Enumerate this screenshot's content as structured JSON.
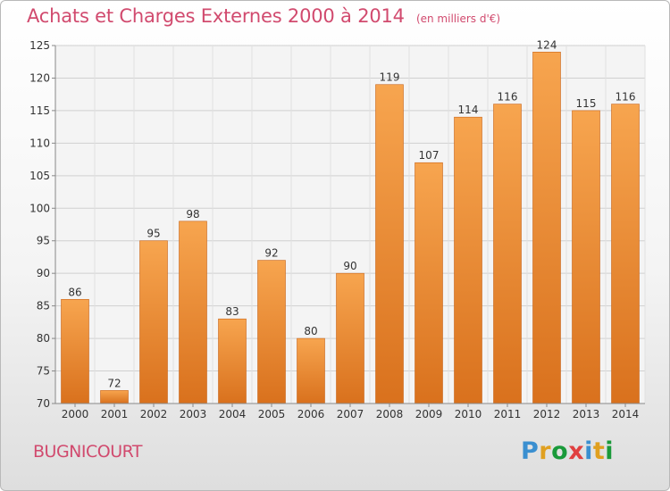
{
  "chart_data": {
    "type": "bar",
    "title": "Achats et Charges Externes 2000 à 2014",
    "subtitle": "(en milliers d'€)",
    "categories": [
      "2000",
      "2001",
      "2002",
      "2003",
      "2004",
      "2005",
      "2006",
      "2007",
      "2008",
      "2009",
      "2010",
      "2011",
      "2012",
      "2013",
      "2014"
    ],
    "values": [
      86,
      72,
      95,
      98,
      83,
      92,
      80,
      90,
      119,
      107,
      114,
      116,
      124,
      115,
      116
    ],
    "ylim": [
      70,
      125
    ],
    "yticks": [
      70,
      75,
      80,
      85,
      90,
      95,
      100,
      105,
      110,
      115,
      120,
      125
    ],
    "grid": true,
    "bar_color_top": "#f7a54f",
    "bar_color_bottom": "#d9711d"
  },
  "commune": "BUGNICOURT",
  "logo": {
    "text": "Proxiti",
    "colors": [
      "#3a8fd0",
      "#e0a020",
      "#1a9a3a",
      "#e04040",
      "#3a8fd0",
      "#e0a020",
      "#1a9a3a"
    ]
  }
}
